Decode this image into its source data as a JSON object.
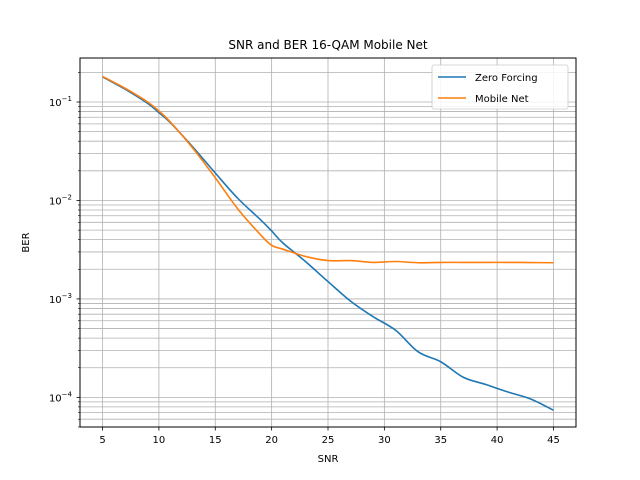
{
  "chart_data": {
    "type": "line",
    "title": "SNR and BER 16-QAM Mobile Net",
    "xlabel": "SNR",
    "ylabel": "BER",
    "xlim": [
      3,
      47
    ],
    "ylim": [
      5e-05,
      0.28
    ],
    "yscale": "log",
    "xticks": [
      5,
      10,
      15,
      20,
      25,
      30,
      35,
      40,
      45
    ],
    "yticks": [
      {
        "value": 0.1,
        "base": "10",
        "exp": "−1"
      },
      {
        "value": 0.01,
        "base": "10",
        "exp": "−2"
      },
      {
        "value": 0.001,
        "base": "10",
        "exp": "−3"
      },
      {
        "value": 0.0001,
        "base": "10",
        "exp": "−4"
      }
    ],
    "grid": true,
    "legend_position": "top-right",
    "series": [
      {
        "name": "Zero Forcing",
        "color": "#1f77b4",
        "x": [
          5,
          7,
          9,
          10,
          11,
          13,
          15,
          17,
          19,
          20,
          21,
          23,
          25,
          27,
          29,
          31,
          33,
          35,
          37,
          39,
          41,
          43,
          45
        ],
        "y": [
          0.18,
          0.135,
          0.097,
          0.078,
          0.062,
          0.035,
          0.019,
          0.0105,
          0.0064,
          0.0049,
          0.0037,
          0.0024,
          0.0015,
          0.00095,
          0.00066,
          0.00048,
          0.00029,
          0.00023,
          0.00016,
          0.000135,
          0.000113,
          9.6e-05,
          7.4e-05
        ]
      },
      {
        "name": "Mobile Net",
        "color": "#ff7f0e",
        "x": [
          5,
          7,
          9,
          10,
          11,
          13,
          15,
          17,
          19,
          20,
          21,
          23,
          25,
          27,
          29,
          31,
          33,
          35,
          37,
          39,
          41,
          43,
          45
        ],
        "y": [
          0.182,
          0.138,
          0.1,
          0.081,
          0.063,
          0.034,
          0.017,
          0.0082,
          0.0045,
          0.0035,
          0.0032,
          0.0027,
          0.00245,
          0.00245,
          0.00235,
          0.0024,
          0.00233,
          0.00235,
          0.00235,
          0.00235,
          0.00235,
          0.00234,
          0.00233
        ]
      }
    ]
  }
}
